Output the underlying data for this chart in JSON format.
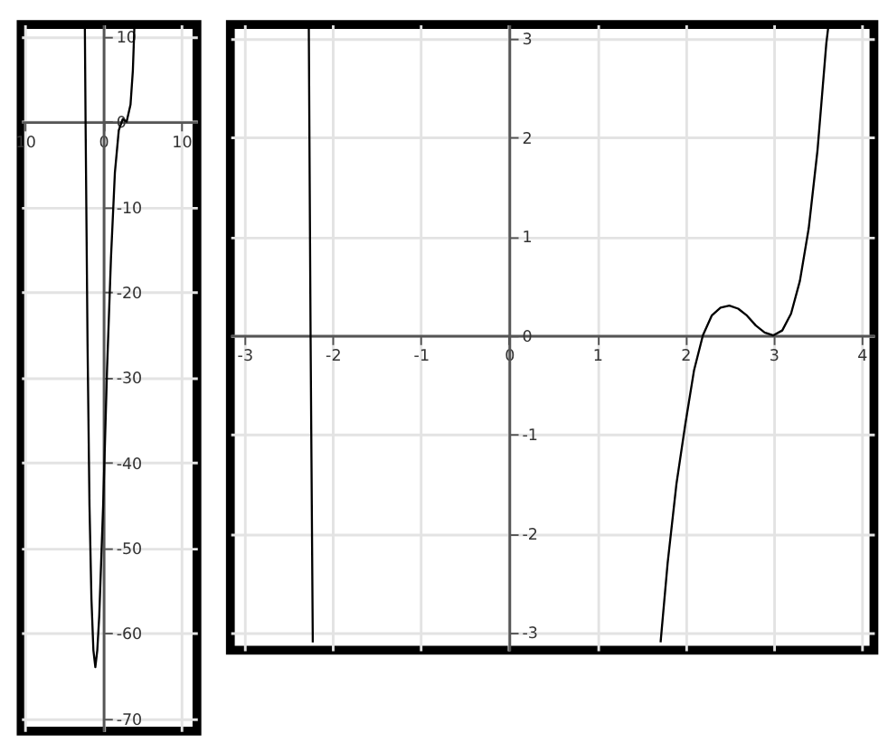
{
  "chart_data": [
    {
      "type": "line",
      "xlim": [
        -10.5,
        12
      ],
      "ylim": [
        -71.5,
        11.4
      ],
      "xticks": [
        {
          "value": -10,
          "label": "10"
        },
        0,
        10
      ],
      "yticks": [
        10,
        0,
        -10,
        -20,
        -30,
        -40,
        -50,
        -60,
        -70
      ],
      "grid": true,
      "series": [
        {
          "color": "#000000",
          "x": [
            -2.34,
            -2.25,
            -2.0,
            -1.75,
            -1.5,
            -1.25,
            -1.0,
            -0.75,
            -0.5,
            0.0,
            0.5,
            1.0,
            1.5,
            2.0,
            2.5,
            3.0,
            3.5,
            3.8,
            3.99
          ],
          "values": [
            11,
            0,
            -26,
            -45,
            -56,
            -62,
            -64,
            -62,
            -58,
            -45,
            -29,
            -16,
            -6,
            -1,
            0.3,
            0,
            2,
            6,
            11
          ]
        }
      ]
    },
    {
      "type": "line",
      "xlim": [
        -3.16,
        4.14
      ],
      "ylim": [
        -3.18,
        3.14
      ],
      "xticks": [
        -3,
        -2,
        -1,
        0,
        1,
        2,
        3,
        4
      ],
      "yticks": [
        3,
        2,
        1,
        0,
        -1,
        -2,
        -3
      ],
      "grid": true,
      "series": [
        {
          "color": "#000000",
          "x": [
            -2.27,
            -2.25,
            -2.225,
            null,
            1.72,
            1.8,
            1.9,
            2.0,
            2.1,
            2.2,
            2.3,
            2.4,
            2.5,
            2.6,
            2.7,
            2.8,
            2.9,
            3.0,
            3.1,
            3.2,
            3.3,
            3.4,
            3.5,
            3.6,
            3.62
          ],
          "values": [
            3.1,
            0,
            -3.1,
            null,
            -3.1,
            -2.3,
            -1.5,
            -0.9,
            -0.35,
            0,
            0.2,
            0.28,
            0.3,
            0.27,
            0.2,
            0.1,
            0.03,
            0,
            0.05,
            0.22,
            0.55,
            1.08,
            1.87,
            2.95,
            3.1
          ]
        }
      ]
    }
  ]
}
